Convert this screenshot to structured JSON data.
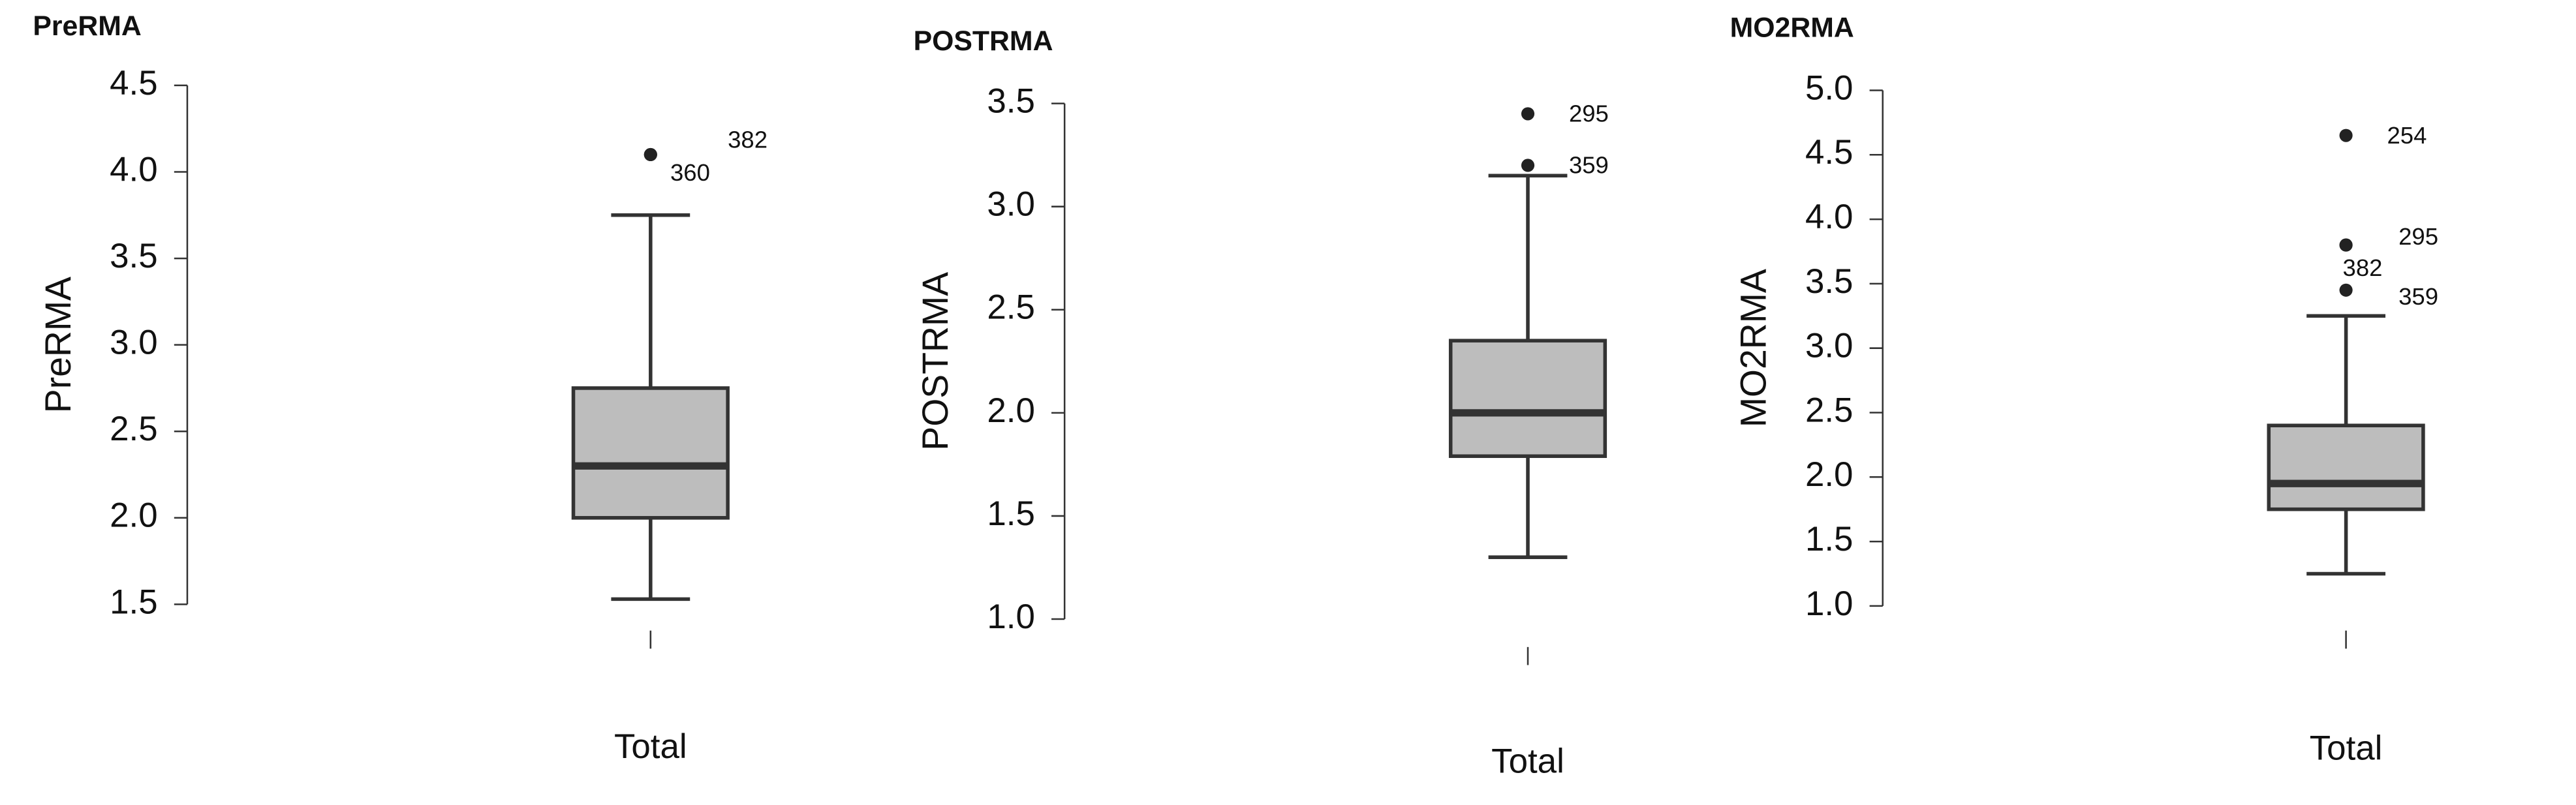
{
  "chart_data": [
    {
      "type": "box",
      "title": "PreRMA",
      "ylabel": "PreRMA",
      "categories": [
        "Total"
      ],
      "color": "#bdbdbd",
      "ylim": [
        1.5,
        4.5
      ],
      "yticks": [
        1.5,
        {
          "value": 2,
          "label": "2.0"
        },
        2.5,
        {
          "value": 3,
          "label": "3.0"
        },
        3.5,
        {
          "value": 4,
          "label": "4.0"
        },
        4.5
      ],
      "boxes": [
        {
          "whislo": 1.53,
          "q1": 2.0,
          "med": 2.3,
          "q3": 2.75,
          "whishi": 3.75
        }
      ],
      "outliers": [
        {
          "value": 4.1,
          "label": "382"
        },
        {
          "value": 4.1,
          "label": "360"
        }
      ]
    },
    {
      "type": "box",
      "title": "POSTRMA",
      "ylabel": "POSTRMA",
      "categories": [
        "Total"
      ],
      "color": "#bdbdbd",
      "ylim": [
        1,
        3.5
      ],
      "yticks": [
        {
          "value": 1,
          "label": "1.0"
        },
        1.5,
        {
          "value": 2,
          "label": "2.0"
        },
        2.5,
        {
          "value": 3,
          "label": "3.0"
        },
        3.5
      ],
      "boxes": [
        {
          "whislo": 1.3,
          "q1": 1.79,
          "med": 2.0,
          "q3": 2.35,
          "whishi": 3.15
        }
      ],
      "outliers": [
        {
          "value": 3.45,
          "label": "295"
        },
        {
          "value": 3.2,
          "label": "359"
        }
      ]
    },
    {
      "type": "box",
      "title": "MO2RMA",
      "ylabel": "MO2RMA",
      "categories": [
        "Total"
      ],
      "color": "#bdbdbd",
      "ylim": [
        1,
        5
      ],
      "yticks": [
        {
          "value": 1,
          "label": "1.0"
        },
        1.5,
        {
          "value": 2,
          "label": "2.0"
        },
        2.5,
        {
          "value": 3,
          "label": "3.0"
        },
        3.5,
        {
          "value": 4,
          "label": "4.0"
        },
        4.5,
        {
          "value": 5,
          "label": "5.0"
        }
      ],
      "boxes": [
        {
          "whislo": 1.25,
          "q1": 1.75,
          "med": 1.95,
          "q3": 2.4,
          "whishi": 3.25
        }
      ],
      "outliers": [
        {
          "value": 4.65,
          "label": "254"
        },
        {
          "value": 3.8,
          "label": "295"
        },
        {
          "value": 3.8,
          "label": "382"
        },
        {
          "value": 3.45,
          "label": "359"
        }
      ]
    }
  ]
}
